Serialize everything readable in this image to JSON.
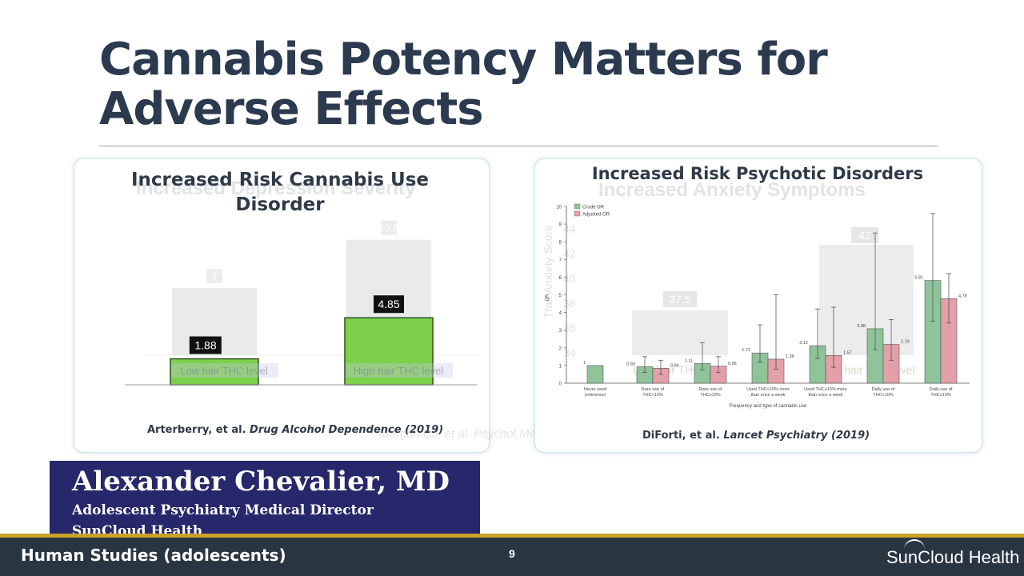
{
  "slide": {
    "title_line1": "Cannabis Potency Matters for",
    "title_line2": "Adverse Effects"
  },
  "left_panel": {
    "title_line1": "Increased Risk Cannabis Use",
    "title_line2": "Disorder",
    "ghost_title": "Increased Depression Severity",
    "citation_authors": "Arterberry, et al.",
    "citation_journal": "Drug Alcohol Dependence",
    "citation_year": "(2019)",
    "ghost_citation": "Morgan CJ, et al. Psychol Med (2012)",
    "bar_color": "#7cd04a"
  },
  "right_panel": {
    "title": "Increased Risk Psychotic Disorders",
    "ghost_title": "Increased Anxiety Symptoms",
    "citation_authors": "DiForti, et al.",
    "citation_journal": "Lancet Psychiatry",
    "citation_year": "(2019)",
    "ghost_ylabel": "Trait Anxiety Score",
    "ghost_bar_labels": [
      "37.5",
      "42"
    ],
    "ghost_x_labels": [
      "Low hair THC level",
      "High hair THC level"
    ],
    "ghost_ticks": [
      "44",
      "42",
      "40",
      "38",
      "36",
      "34"
    ]
  },
  "chart_data": [
    {
      "type": "bar",
      "title": "Increased Risk Cannabis Use Disorder",
      "categories": [
        "Low hair THC level",
        "High hair THC level"
      ],
      "values": [
        1.88,
        4.85
      ],
      "ghost_values": [
        7,
        10.5
      ],
      "value_labels": [
        "1.88",
        "4.85"
      ],
      "ghost_value_labels": [
        "7",
        "10.5"
      ],
      "ylim": [
        0,
        11
      ],
      "grid": false
    },
    {
      "type": "bar",
      "title": "Increased Risk Psychotic Disorders",
      "xlabel": "Frequency and type of cannabis use",
      "ylabel": "OR",
      "ylim": [
        0,
        10
      ],
      "yticks": [
        "0",
        "1",
        "2",
        "3",
        "4",
        "5",
        "6",
        "7",
        "8",
        "9",
        "10"
      ],
      "legend": "top-left",
      "categories": [
        [
          "Never used",
          "(reference)"
        ],
        [
          "Rare use of",
          "THC<10%"
        ],
        [
          "Rare use of",
          "THC≥10%"
        ],
        [
          "Used THC<10% more",
          "than once a week"
        ],
        [
          "Used THC≥10% more",
          "than once a week"
        ],
        [
          "Daily use of",
          "THC<10%"
        ],
        [
          "Daily use of",
          "THC≥10%"
        ]
      ],
      "series": [
        {
          "name": "Crude OR",
          "color": "#8fc49a",
          "values": [
            1,
            0.93,
            1.11,
            1.71,
            2.12,
            3.08,
            5.81
          ],
          "labels": [
            "1",
            "0.93",
            "1.11",
            "1.71",
            "2.12",
            "3.08",
            "5.81"
          ],
          "error_low": [
            1,
            0.6,
            0.75,
            1.2,
            1.4,
            1.9,
            3.5
          ],
          "error_high": [
            1,
            1.5,
            2.3,
            3.3,
            4.2,
            8.5,
            9.6
          ]
        },
        {
          "name": "Adjusted OR",
          "color": "#e3a0a8",
          "values": [
            null,
            0.84,
            0.96,
            1.36,
            1.57,
            2.19,
            4.78
          ],
          "labels": [
            "",
            "0.84",
            "0.96",
            "1.36",
            "1.57",
            "2.19",
            "4.78"
          ],
          "error_low": [
            null,
            0.5,
            0.6,
            0.8,
            0.9,
            1.3,
            3.4
          ],
          "error_high": [
            null,
            1.3,
            1.5,
            5.0,
            4.3,
            3.6,
            6.2
          ]
        }
      ]
    }
  ],
  "presenter": {
    "name": "Alexander Chevalier, MD",
    "role": "Adolescent Psychiatry Medical Director",
    "org": "SunCloud Health"
  },
  "footer": {
    "section": "Human Studies (adolescents)",
    "page_number": "9",
    "logo_text": "SunCloud Health"
  }
}
